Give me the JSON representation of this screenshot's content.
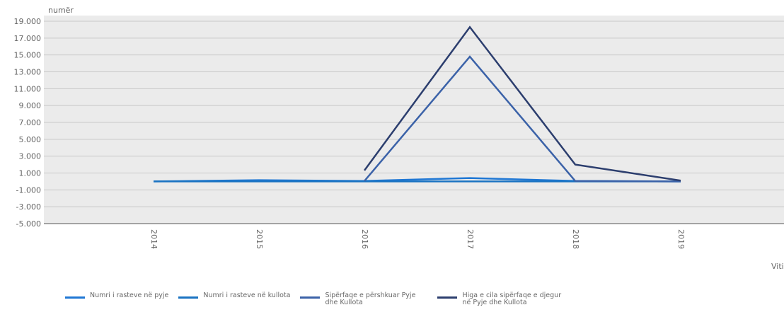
{
  "chart_data": {
    "type": "line",
    "title": "",
    "ylabel": "numër",
    "xlabel": "Viti",
    "x": [
      "2014",
      "2015",
      "2016",
      "2017",
      "2018",
      "2019"
    ],
    "y_ticks": [
      "19.000",
      "17.000",
      "15.000",
      "13.000",
      "11.000",
      "9.000",
      "7.000",
      "5.000",
      "3.000",
      "1.000",
      "-1.000",
      "-3.000",
      "-5.000"
    ],
    "ylim": [
      -5000,
      20000
    ],
    "grid": true,
    "legend_position": "bottom",
    "series": [
      {
        "name": "Numri i rasteve në pyje",
        "color": "#1f77d4",
        "values": [
          0,
          150,
          50,
          400,
          50,
          0
        ]
      },
      {
        "name": "Numri i rasteve në kullota",
        "color": "#1a73c2",
        "values": [
          0,
          0,
          0,
          0,
          0,
          0
        ]
      },
      {
        "name": "Sipërfaqe e përshkuar Pyje dhe Kullota",
        "color": "#3b62a8",
        "values": [
          null,
          null,
          50,
          14800,
          50,
          0
        ]
      },
      {
        "name": "Higa e cila sipërfaqe e djegur në Pyje dhe Kullota",
        "color": "#2c3e6e",
        "values": [
          null,
          null,
          1300,
          18300,
          2000,
          100
        ]
      }
    ]
  }
}
